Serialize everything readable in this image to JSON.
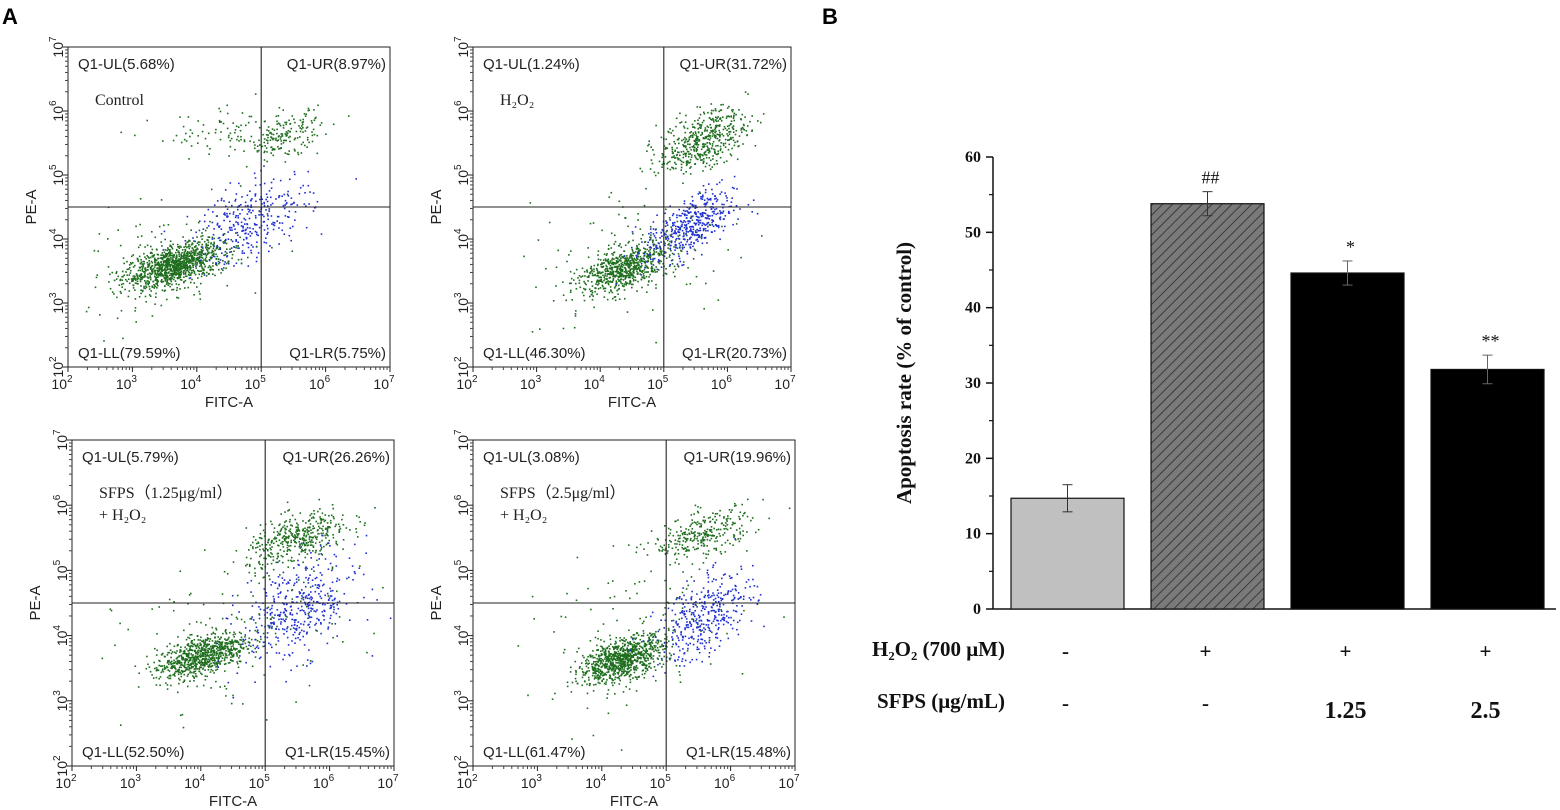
{
  "panels": {
    "a": "A",
    "b": "B"
  },
  "chart_data": [
    {
      "type": "scatter",
      "subtype": "flow-cytometry-quadrant",
      "xlabel": "FITC-A",
      "ylabel": "PE-A",
      "xlim_log10": [
        2,
        7
      ],
      "ylim_log10": [
        2,
        7
      ],
      "x_gate_log10": 5.0,
      "y_gate_log10": 4.5,
      "label": "Control",
      "label_lines": [
        "Control"
      ],
      "quadrants": {
        "ul": "Q1-UL(5.68%)",
        "ur": "Q1-UR(8.97%)",
        "ll": "Q1-LL(79.59%)",
        "lr": "Q1-LR(5.75%)"
      },
      "quadrant_percent": {
        "UL": 5.68,
        "UR": 8.97,
        "LL": 79.59,
        "LR": 5.75
      },
      "colors": {
        "live": "#1e6e1e",
        "apoptotic": "#1f2fd0"
      },
      "populations": [
        {
          "color": "live",
          "n": 1100,
          "x": 3.65,
          "y": 3.6,
          "sx": 0.38,
          "sy": 0.18,
          "rho": 0.55
        },
        {
          "color": "live",
          "n": 180,
          "x": 5.35,
          "y": 5.62,
          "sx": 0.28,
          "sy": 0.18,
          "rho": 0.4
        },
        {
          "color": "live",
          "n": 70,
          "x": 4.3,
          "y": 5.65,
          "sx": 0.5,
          "sy": 0.18,
          "rho": 0.2
        },
        {
          "color": "apoptotic",
          "n": 320,
          "x": 4.85,
          "y": 4.3,
          "sx": 0.45,
          "sy": 0.35,
          "rho": 0.5
        },
        {
          "color": "live",
          "n": 120,
          "x": 3.5,
          "y": 3.6,
          "sx": 0.8,
          "sy": 0.45,
          "rho": 0.3
        }
      ]
    },
    {
      "type": "scatter",
      "subtype": "flow-cytometry-quadrant",
      "xlabel": "FITC-A",
      "ylabel": "PE-A",
      "xlim_log10": [
        2,
        7
      ],
      "ylim_log10": [
        2,
        7
      ],
      "x_gate_log10": 5.0,
      "y_gate_log10": 4.5,
      "label": "H₂O₂",
      "label_lines": [
        "H₂O₂"
      ],
      "quadrants": {
        "ul": "Q1-UL(1.24%)",
        "ur": "Q1-UR(31.72%)",
        "ll": "Q1-LL(46.30%)",
        "lr": "Q1-LR(20.73%)"
      },
      "quadrant_percent": {
        "UL": 1.24,
        "UR": 31.72,
        "LL": 46.3,
        "LR": 20.73
      },
      "colors": {
        "live": "#1e6e1e",
        "apoptotic": "#1f2fd0"
      },
      "populations": [
        {
          "color": "live",
          "n": 700,
          "x": 4.35,
          "y": 3.55,
          "sx": 0.35,
          "sy": 0.2,
          "rho": 0.55
        },
        {
          "color": "live",
          "n": 500,
          "x": 5.6,
          "y": 5.55,
          "sx": 0.35,
          "sy": 0.25,
          "rho": 0.5
        },
        {
          "color": "apoptotic",
          "n": 450,
          "x": 5.4,
          "y": 4.2,
          "sx": 0.35,
          "sy": 0.28,
          "rho": 0.6
        },
        {
          "color": "live",
          "n": 120,
          "x": 4.6,
          "y": 3.8,
          "sx": 0.9,
          "sy": 0.6,
          "rho": 0.3
        }
      ]
    },
    {
      "type": "scatter",
      "subtype": "flow-cytometry-quadrant",
      "xlabel": "FITC-A",
      "ylabel": "PE-A",
      "xlim_log10": [
        2,
        7
      ],
      "ylim_log10": [
        2,
        7
      ],
      "x_gate_log10": 5.0,
      "y_gate_log10": 4.5,
      "label": "SFPS（1.25μg/ml）+ H₂O₂",
      "label_lines": [
        "SFPS（1.25μg/ml）",
        "+ H₂O₂"
      ],
      "quadrants": {
        "ul": "Q1-UL(5.79%)",
        "ur": "Q1-UR(26.26%)",
        "ll": "Q1-LL(52.50%)",
        "lr": "Q1-LR(15.45%)"
      },
      "quadrant_percent": {
        "UL": 5.79,
        "UR": 26.26,
        "LL": 52.5,
        "LR": 15.45
      },
      "colors": {
        "live": "#1e6e1e",
        "apoptotic": "#1f2fd0"
      },
      "populations": [
        {
          "color": "live",
          "n": 800,
          "x": 4.0,
          "y": 3.7,
          "sx": 0.35,
          "sy": 0.18,
          "rho": 0.55
        },
        {
          "color": "live",
          "n": 420,
          "x": 5.5,
          "y": 5.5,
          "sx": 0.4,
          "sy": 0.22,
          "rho": 0.55
        },
        {
          "color": "apoptotic",
          "n": 420,
          "x": 5.5,
          "y": 4.4,
          "sx": 0.45,
          "sy": 0.4,
          "rho": 0.4
        },
        {
          "color": "live",
          "n": 120,
          "x": 4.5,
          "y": 4.0,
          "sx": 0.9,
          "sy": 0.6,
          "rho": 0.3
        }
      ]
    },
    {
      "type": "scatter",
      "subtype": "flow-cytometry-quadrant",
      "xlabel": "FITC-A",
      "ylabel": "PE-A",
      "xlim_log10": [
        2,
        7
      ],
      "ylim_log10": [
        2,
        7
      ],
      "x_gate_log10": 5.0,
      "y_gate_log10": 4.5,
      "label": "SFPS（2.5μg/ml）+ H₂O₂",
      "label_lines": [
        "SFPS（2.5μg/ml）",
        "+ H₂O₂"
      ],
      "quadrants": {
        "ul": "Q1-UL(3.08%)",
        "ur": "Q1-UR(19.96%)",
        "ll": "Q1-LL(61.47%)",
        "lr": "Q1-LR(15.48%)"
      },
      "quadrant_percent": {
        "UL": 3.08,
        "UR": 19.96,
        "LL": 61.47,
        "LR": 15.48
      },
      "colors": {
        "live": "#1e6e1e",
        "apoptotic": "#1f2fd0"
      },
      "populations": [
        {
          "color": "live",
          "n": 900,
          "x": 4.3,
          "y": 3.65,
          "sx": 0.33,
          "sy": 0.18,
          "rho": 0.55
        },
        {
          "color": "live",
          "n": 300,
          "x": 5.55,
          "y": 5.55,
          "sx": 0.38,
          "sy": 0.2,
          "rho": 0.5
        },
        {
          "color": "apoptotic",
          "n": 380,
          "x": 5.6,
          "y": 4.3,
          "sx": 0.38,
          "sy": 0.35,
          "rho": 0.55
        },
        {
          "color": "live",
          "n": 110,
          "x": 4.6,
          "y": 4.0,
          "sx": 0.9,
          "sy": 0.6,
          "rho": 0.3
        }
      ]
    },
    {
      "type": "bar",
      "ylabel": "Apoptosis rate (% of control)",
      "ylim": [
        0,
        60
      ],
      "yticks": [
        0,
        10,
        20,
        30,
        40,
        50,
        60
      ],
      "categories": [
        "Control",
        "H₂O₂",
        "SFPS 1.25 + H₂O₂",
        "SFPS 2.5 + H₂O₂"
      ],
      "values": [
        14.7,
        53.8,
        44.6,
        31.8
      ],
      "errors": [
        1.8,
        1.6,
        1.6,
        1.9
      ],
      "significance": [
        "",
        "##",
        "*",
        "**"
      ],
      "bar_colors": [
        "#c0c0c0",
        "#808080",
        "#000000",
        "#000000"
      ],
      "bar_hatch": [
        false,
        true,
        false,
        false
      ],
      "treatments": [
        {
          "label": "H₂O₂ (700 μM)",
          "values": [
            "-",
            "+",
            "+",
            "+"
          ]
        },
        {
          "label": "SFPS (μg/mL)",
          "values": [
            "-",
            "-",
            "1.25",
            "2.5"
          ]
        }
      ]
    }
  ]
}
